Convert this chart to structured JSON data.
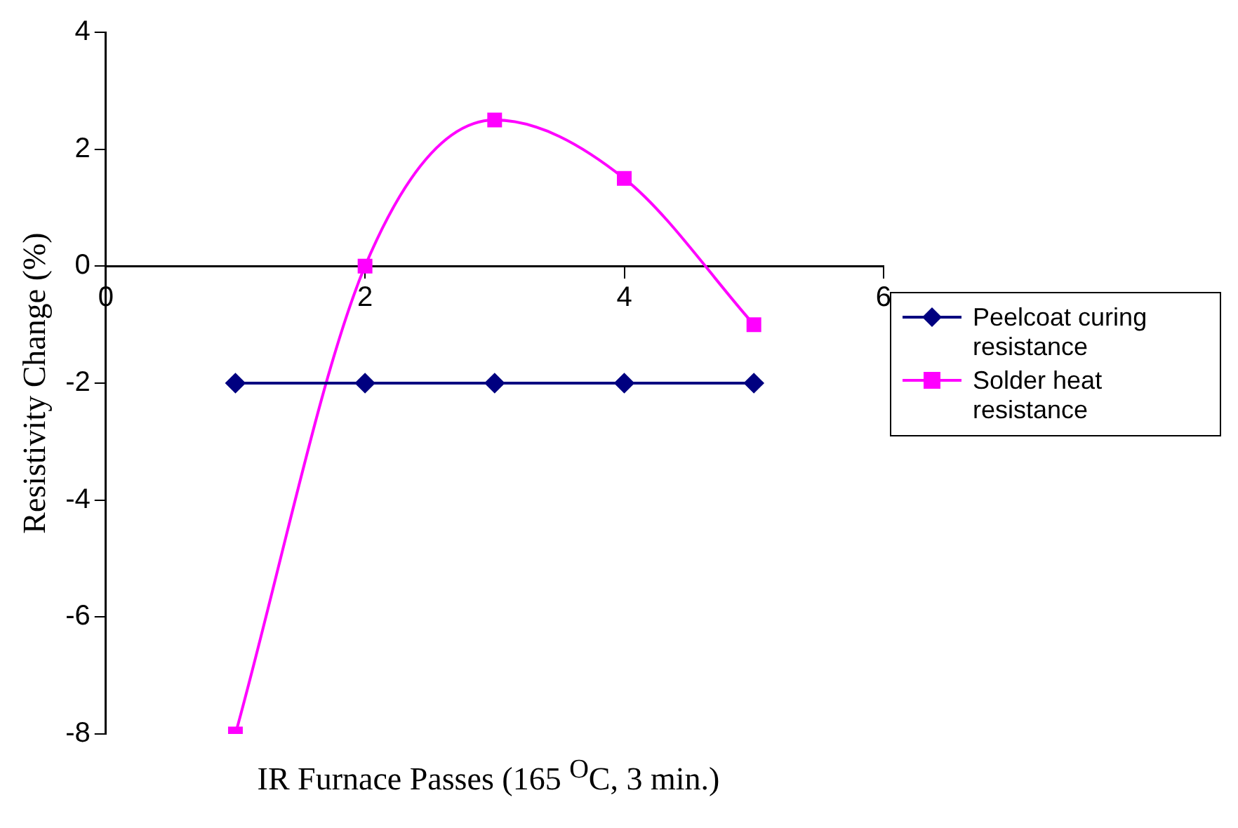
{
  "chart_data": {
    "type": "line",
    "xlabel": "IR Furnace Passes (165 $^{O}$C, 3 min.)",
    "ylabel": "Resistivity Change (%)",
    "xlim": [
      0,
      6
    ],
    "xticks": [
      0,
      2,
      4,
      6
    ],
    "ylim": [
      -8,
      4
    ],
    "yticks": [
      -8,
      -6,
      -4,
      -2,
      0,
      2,
      4
    ],
    "grid": false,
    "legend": "right",
    "series": [
      {
        "name": "Peelcoat curing resistance",
        "color": "#000080",
        "marker": "diamond",
        "x": [
          1,
          2,
          3,
          4,
          5
        ],
        "values": [
          -2,
          -2,
          -2,
          -2,
          -2
        ]
      },
      {
        "name": "Solder heat resistance",
        "color": "#ff00ff",
        "marker": "square",
        "x": [
          1,
          2,
          3,
          4,
          5
        ],
        "values": [
          -8,
          0,
          2.5,
          1.5,
          -1
        ]
      }
    ]
  }
}
